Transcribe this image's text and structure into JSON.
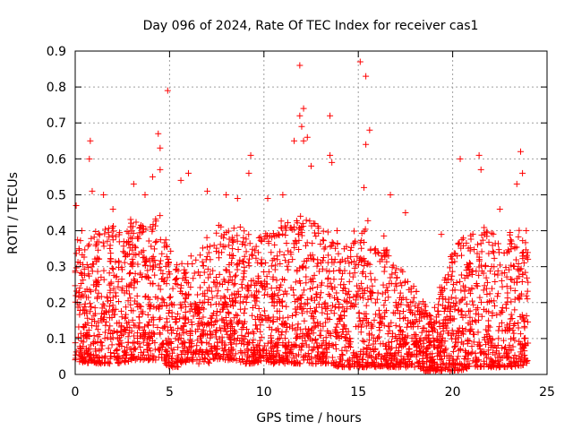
{
  "chart_data": {
    "type": "scatter",
    "title": "Day 096 of 2024, Rate Of TEC Index for receiver cas1",
    "xlabel": "GPS time / hours",
    "ylabel": "ROTI / TECUs",
    "xlim": [
      0,
      25
    ],
    "ylim": [
      0,
      0.9
    ],
    "xticks": [
      "0",
      "5",
      "10",
      "15",
      "20",
      "25"
    ],
    "yticks": [
      "0",
      "0.1",
      "0.2",
      "0.3",
      "0.4",
      "0.5",
      "0.6",
      "0.7",
      "0.8",
      "0.9"
    ],
    "grid": true,
    "marker": "+",
    "color": "#ff0000",
    "data_extent": [
      0,
      24
    ],
    "series": [
      {
        "points": [
          [
            0.05,
            0.47
          ],
          [
            0.35,
            0.4
          ],
          [
            0.8,
            0.65
          ],
          [
            0.75,
            0.6
          ],
          [
            0.9,
            0.51
          ],
          [
            1.5,
            0.5
          ],
          [
            2.0,
            0.46
          ],
          [
            3.1,
            0.53
          ],
          [
            3.7,
            0.5
          ],
          [
            4.1,
            0.55
          ],
          [
            4.4,
            0.67
          ],
          [
            4.5,
            0.63
          ],
          [
            4.5,
            0.57
          ],
          [
            4.9,
            0.79
          ],
          [
            5.6,
            0.54
          ],
          [
            6.0,
            0.56
          ],
          [
            7.0,
            0.51
          ],
          [
            8.0,
            0.5
          ],
          [
            8.6,
            0.49
          ],
          [
            9.3,
            0.61
          ],
          [
            9.2,
            0.56
          ],
          [
            10.2,
            0.49
          ],
          [
            11.0,
            0.5
          ],
          [
            11.6,
            0.65
          ],
          [
            11.9,
            0.86
          ],
          [
            11.9,
            0.72
          ],
          [
            12.1,
            0.74
          ],
          [
            12.0,
            0.69
          ],
          [
            12.1,
            0.65
          ],
          [
            12.3,
            0.66
          ],
          [
            12.5,
            0.58
          ],
          [
            13.5,
            0.72
          ],
          [
            13.5,
            0.61
          ],
          [
            13.6,
            0.59
          ],
          [
            15.1,
            0.87
          ],
          [
            15.4,
            0.83
          ],
          [
            15.6,
            0.68
          ],
          [
            15.4,
            0.64
          ],
          [
            15.3,
            0.52
          ],
          [
            16.7,
            0.5
          ],
          [
            17.5,
            0.45
          ],
          [
            19.4,
            0.39
          ],
          [
            20.4,
            0.6
          ],
          [
            21.4,
            0.61
          ],
          [
            21.5,
            0.57
          ],
          [
            22.5,
            0.46
          ],
          [
            23.4,
            0.53
          ],
          [
            23.6,
            0.62
          ],
          [
            23.7,
            0.56
          ],
          [
            23.9,
            0.4
          ]
        ],
        "envelope": {
          "x": [
            0,
            0.5,
            1,
            1.5,
            2,
            2.5,
            3,
            3.5,
            4,
            4.5,
            5,
            5.5,
            6,
            6.5,
            7,
            7.5,
            8,
            8.5,
            9,
            9.5,
            10,
            10.5,
            11,
            11.5,
            12,
            12.5,
            13,
            13.5,
            14,
            14.5,
            15,
            15.5,
            16,
            16.5,
            17,
            17.5,
            18,
            18.5,
            19,
            19.5,
            20,
            20.5,
            21,
            21.5,
            22,
            22.5,
            23,
            23.5,
            24
          ],
          "low": [
            0.04,
            0.03,
            0.03,
            0.03,
            0.03,
            0.03,
            0.04,
            0.04,
            0.04,
            0.04,
            0.02,
            0.02,
            0.04,
            0.03,
            0.03,
            0.04,
            0.04,
            0.04,
            0.03,
            0.03,
            0.04,
            0.03,
            0.03,
            0.03,
            0.03,
            0.03,
            0.03,
            0.03,
            0.02,
            0.02,
            0.02,
            0.02,
            0.02,
            0.02,
            0.02,
            0.02,
            0.02,
            0.01,
            0.01,
            0.01,
            0.01,
            0.01,
            0.02,
            0.02,
            0.02,
            0.02,
            0.02,
            0.02,
            0.03
          ],
          "high": [
            0.4,
            0.36,
            0.4,
            0.42,
            0.42,
            0.4,
            0.44,
            0.42,
            0.43,
            0.45,
            0.35,
            0.3,
            0.34,
            0.32,
            0.4,
            0.42,
            0.4,
            0.42,
            0.4,
            0.38,
            0.4,
            0.42,
            0.44,
            0.42,
            0.45,
            0.45,
            0.4,
            0.42,
            0.4,
            0.38,
            0.42,
            0.44,
            0.4,
            0.38,
            0.32,
            0.28,
            0.24,
            0.2,
            0.18,
            0.28,
            0.35,
            0.38,
            0.4,
            0.42,
            0.4,
            0.38,
            0.4,
            0.42,
            0.35
          ]
        }
      }
    ]
  }
}
